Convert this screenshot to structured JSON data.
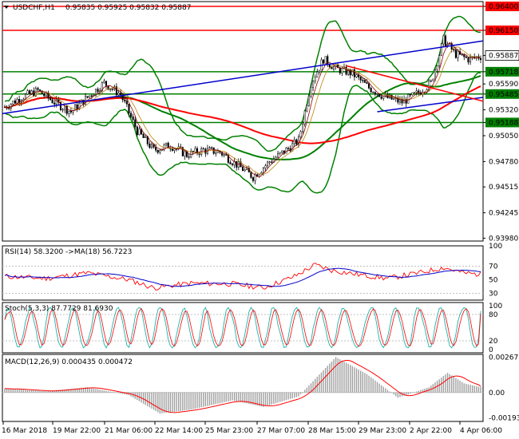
{
  "chart_data": [
    {
      "type": "candlestick",
      "symbol_header": "USDCHF,H1",
      "ohlc_header": "0.95835 0.95925 0.95832 0.95887",
      "ylim": [
        0.9395,
        0.9645
      ],
      "y_tick_labels": [
        "0.96400",
        "0.96150",
        "0.95887",
        "0.95718",
        "0.95590",
        "0.95485",
        "0.95320",
        "0.95188",
        "0.95050",
        "0.94780",
        "0.94515",
        "0.94245",
        "0.93980"
      ],
      "highlighted_levels": [
        {
          "label": "0.96400",
          "value": 0.964,
          "color": "#ff0000"
        },
        {
          "label": "0.96150",
          "value": 0.9615,
          "color": "#ff0000"
        },
        {
          "label": "0.95718",
          "value": 0.95718,
          "color": "#008000"
        },
        {
          "label": "0.95485",
          "value": 0.95485,
          "color": "#008000"
        },
        {
          "label": "0.95188",
          "value": 0.95188,
          "color": "#008000"
        }
      ],
      "current_price": {
        "label": "0.95887",
        "value": 0.95887
      },
      "x_tick_labels": [
        "16 Mar 2018",
        "19 Mar 22:00",
        "21 Mar 06:00",
        "22 Mar 14:00",
        "25 Mar 23:00",
        "27 Mar 07:00",
        "28 Mar 15:00",
        "29 Mar 23:00",
        "2 Apr 22:00",
        "4 Apr 06:00"
      ],
      "price_anchors": [
        [
          0,
          0.9535
        ],
        [
          8,
          0.9545
        ],
        [
          16,
          0.9552
        ],
        [
          24,
          0.954
        ],
        [
          32,
          0.953
        ],
        [
          40,
          0.9545
        ],
        [
          48,
          0.956
        ],
        [
          56,
          0.9548
        ],
        [
          64,
          0.951
        ],
        [
          72,
          0.949
        ],
        [
          80,
          0.9495
        ],
        [
          88,
          0.9485
        ],
        [
          96,
          0.949
        ],
        [
          104,
          0.9488
        ],
        [
          112,
          0.9475
        ],
        [
          120,
          0.9462
        ],
        [
          128,
          0.9478
        ],
        [
          136,
          0.949
        ],
        [
          142,
          0.95
        ],
        [
          148,
          0.956
        ],
        [
          154,
          0.9585
        ],
        [
          160,
          0.9575
        ],
        [
          168,
          0.957
        ],
        [
          176,
          0.9555
        ],
        [
          184,
          0.9545
        ],
        [
          192,
          0.954
        ],
        [
          200,
          0.955
        ],
        [
          206,
          0.956
        ],
        [
          212,
          0.9605
        ],
        [
          218,
          0.959
        ],
        [
          224,
          0.9585
        ],
        [
          230,
          0.9588
        ]
      ],
      "bars": 231,
      "colors": {
        "candle": "#000000",
        "bollinger": "#008000",
        "ma_fast": "#ff0000",
        "ma_slow": "#008000",
        "trend_blue": "#0000cc",
        "trend_red": "#ff0000",
        "grid": "#c0c0c0"
      }
    },
    {
      "type": "line",
      "title": "RSI(14) 58.3200  ->MA(18) 56.7223",
      "ylim": [
        20,
        100
      ],
      "y_tick_labels": [
        "100",
        "70",
        "50",
        "30"
      ],
      "last_value": 58.32,
      "ma_last_value": 56.7223,
      "anchors": [
        [
          0,
          55
        ],
        [
          20,
          52
        ],
        [
          40,
          60
        ],
        [
          60,
          50
        ],
        [
          72,
          38
        ],
        [
          90,
          45
        ],
        [
          110,
          44
        ],
        [
          125,
          38
        ],
        [
          140,
          55
        ],
        [
          150,
          72
        ],
        [
          158,
          64
        ],
        [
          170,
          58
        ],
        [
          185,
          52
        ],
        [
          200,
          60
        ],
        [
          212,
          68
        ],
        [
          222,
          60
        ],
        [
          230,
          58
        ]
      ],
      "colors": {
        "rsi": "#ff0000",
        "ma": "#0000cc"
      }
    },
    {
      "type": "line",
      "title": "Stoch(5,3,3) 87.7729 81.6930",
      "ylim": [
        0,
        100
      ],
      "y_tick_labels": [
        "100",
        "80",
        "20",
        "0"
      ],
      "main_last": 87.7729,
      "signal_last": 81.693,
      "colors": {
        "main": "#20b2aa",
        "signal": "#ff0000"
      }
    },
    {
      "type": "bar",
      "title": "MACD(12,26,9) 0.000435 0.000472",
      "ylim": [
        -0.0022,
        0.0029
      ],
      "y_tick_labels": [
        "0.002677",
        "0.00",
        "-0.001931"
      ],
      "macd_last": 0.000435,
      "signal_last": 0.000472,
      "anchors": [
        [
          0,
          0.0003
        ],
        [
          20,
          0.0001
        ],
        [
          40,
          0.0004
        ],
        [
          60,
          -0.0002
        ],
        [
          75,
          -0.0016
        ],
        [
          90,
          -0.0013
        ],
        [
          110,
          -0.0006
        ],
        [
          125,
          -0.0011
        ],
        [
          142,
          -0.0003
        ],
        [
          160,
          0.0027
        ],
        [
          175,
          0.0014
        ],
        [
          190,
          -0.0004
        ],
        [
          205,
          0.0004
        ],
        [
          214,
          0.0015
        ],
        [
          222,
          0.0007
        ],
        [
          230,
          0.0004
        ]
      ],
      "colors": {
        "histogram": "#a0a0a0",
        "signal": "#ff0000"
      }
    }
  ]
}
